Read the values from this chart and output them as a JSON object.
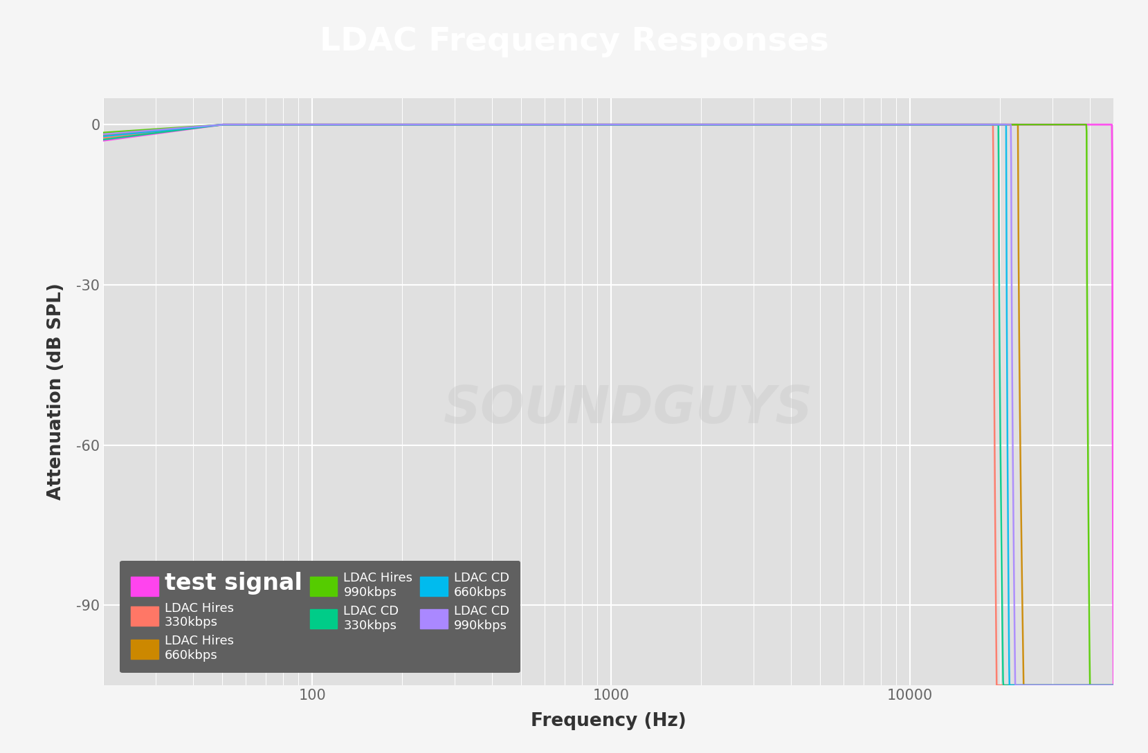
{
  "title": "LDAC Frequency Responses",
  "title_bg_color": "#0d2b2b",
  "title_text_color": "#ffffff",
  "plot_bg_color": "#e0e0e0",
  "figure_bg_color": "#f5f5f5",
  "ylabel": "Attenuation (dB SPL)",
  "xlabel": "Frequency (Hz)",
  "xmin": 20,
  "xmax": 48000,
  "ymin": -105,
  "ymax": 5,
  "yticks": [
    0,
    -30,
    -60,
    -90
  ],
  "xtick_labels": [
    "100",
    "1000",
    "10000"
  ],
  "xtick_vals": [
    100,
    1000,
    10000
  ],
  "watermark_text": "SOUNDGUYS",
  "legend_bg_color": "#606060",
  "legend_text_color": "#ffffff",
  "series": [
    {
      "label": "test signal",
      "color": "#ff44ee",
      "cutoff_hz": 48000,
      "rolloff_start_hz": 47500,
      "low_rolloff_db": -3.0,
      "low_rolloff_hz": 50,
      "is_test": true,
      "linewidth": 2.0
    },
    {
      "label": "LDAC Hires\n330kbps",
      "color": "#ff7766",
      "cutoff_hz": 19500,
      "rolloff_start_hz": 19000,
      "low_rolloff_db": -2.5,
      "low_rolloff_hz": 50,
      "is_test": false,
      "linewidth": 1.8
    },
    {
      "label": "LDAC Hires\n660kbps",
      "color": "#cc8800",
      "cutoff_hz": 24000,
      "rolloff_start_hz": 23000,
      "low_rolloff_db": -2.0,
      "low_rolloff_hz": 50,
      "is_test": false,
      "linewidth": 1.8
    },
    {
      "label": "LDAC Hires\n990kbps",
      "color": "#55cc00",
      "cutoff_hz": 40000,
      "rolloff_start_hz": 39000,
      "low_rolloff_db": -1.5,
      "low_rolloff_hz": 50,
      "is_test": false,
      "linewidth": 1.8
    },
    {
      "label": "LDAC CD\n330kbps",
      "color": "#00cc88",
      "cutoff_hz": 20500,
      "rolloff_start_hz": 19800,
      "low_rolloff_db": -2.8,
      "low_rolloff_hz": 50,
      "is_test": false,
      "linewidth": 1.8
    },
    {
      "label": "LDAC CD\n660kbps",
      "color": "#00bbee",
      "cutoff_hz": 21500,
      "rolloff_start_hz": 21000,
      "low_rolloff_db": -2.2,
      "low_rolloff_hz": 50,
      "is_test": false,
      "linewidth": 1.8
    },
    {
      "label": "LDAC CD\n990kbps",
      "color": "#aa88ff",
      "cutoff_hz": 22500,
      "rolloff_start_hz": 21800,
      "low_rolloff_db": -1.8,
      "low_rolloff_hz": 50,
      "is_test": false,
      "linewidth": 1.8
    }
  ]
}
